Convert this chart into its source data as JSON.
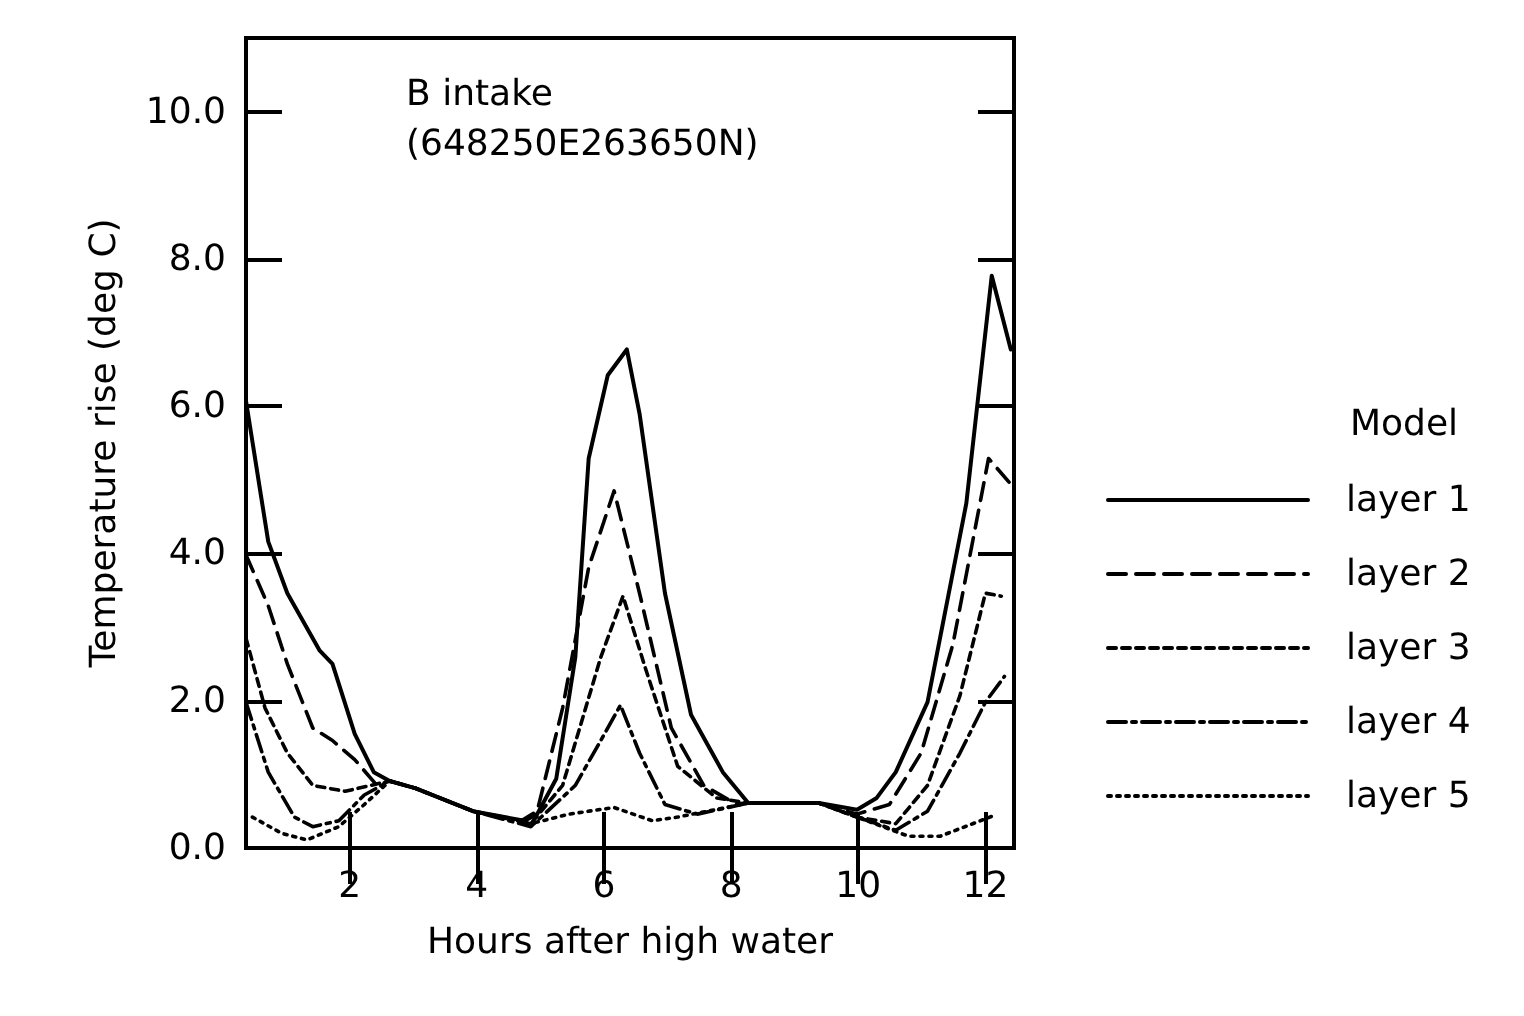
{
  "chart_data": {
    "type": "line",
    "xlabel": "Hours after high water",
    "ylabel": "Temperature rise (deg C)",
    "legend_title": "Model",
    "legend": "right",
    "grid": false,
    "marker": "none",
    "annotations": [
      "B intake",
      "(648250E263650N)"
    ],
    "xlim": [
      0.37,
      12.45
    ],
    "xticks": [
      2,
      4,
      6,
      8,
      10,
      12
    ],
    "ylim": [
      0,
      11
    ],
    "yticks": [
      {
        "value": 0,
        "label": "0.0"
      },
      {
        "value": 2,
        "label": "2.0"
      },
      {
        "value": 4,
        "label": "4.0"
      },
      {
        "value": 6,
        "label": "6.0"
      },
      {
        "value": 8,
        "label": "8.0"
      },
      {
        "value": 10,
        "label": "10.0"
      }
    ],
    "series": [
      {
        "name": "layer 1",
        "color": "#000000",
        "line_style": "solid",
        "x": [
          0.37,
          0.72,
          1.02,
          1.53,
          1.73,
          2.08,
          2.38,
          2.63,
          3.04,
          3.94,
          4.75,
          4.95,
          5.25,
          5.55,
          5.76,
          6.06,
          6.36,
          6.56,
          6.96,
          7.37,
          7.87,
          8.27,
          9.38,
          9.98,
          10.29,
          10.59,
          11.09,
          11.7,
          12.1,
          12.4
        ],
        "values": [
          6.07,
          4.16,
          3.46,
          2.68,
          2.5,
          1.55,
          1.03,
          0.91,
          0.81,
          0.5,
          0.37,
          0.46,
          0.94,
          2.59,
          5.29,
          6.42,
          6.77,
          5.9,
          3.46,
          1.81,
          1.03,
          0.61,
          0.61,
          0.52,
          0.68,
          1.03,
          1.98,
          4.68,
          7.77,
          6.77
        ]
      },
      {
        "name": "layer 2",
        "color": "#000000",
        "line_style": "dashed",
        "x": [
          0.37,
          0.72,
          1.02,
          1.42,
          1.73,
          2.08,
          2.43,
          2.63,
          3.04,
          3.94,
          4.7,
          4.95,
          5.35,
          5.76,
          6.16,
          6.56,
          7.06,
          7.57,
          8.07,
          8.27,
          9.38,
          9.98,
          10.49,
          10.99,
          11.49,
          12.05,
          12.4
        ],
        "values": [
          3.98,
          3.29,
          2.5,
          1.63,
          1.46,
          1.2,
          0.85,
          0.91,
          0.81,
          0.5,
          0.37,
          0.5,
          1.9,
          3.81,
          4.85,
          3.46,
          1.63,
          0.85,
          0.6,
          0.61,
          0.61,
          0.46,
          0.59,
          1.29,
          2.77,
          5.29,
          4.94
        ]
      },
      {
        "name": "layer 3",
        "color": "#000000",
        "line_style": "shortdash",
        "x": [
          0.37,
          0.67,
          1.02,
          1.42,
          1.93,
          2.33,
          2.63,
          3.04,
          3.94,
          4.85,
          5.35,
          5.95,
          6.3,
          6.66,
          7.16,
          7.77,
          8.27,
          9.38,
          9.98,
          10.59,
          11.09,
          11.6,
          12.0,
          12.25
        ],
        "values": [
          2.85,
          1.9,
          1.29,
          0.85,
          0.77,
          0.85,
          0.91,
          0.81,
          0.5,
          0.33,
          0.85,
          2.59,
          3.42,
          2.42,
          1.11,
          0.68,
          0.61,
          0.61,
          0.42,
          0.33,
          0.85,
          2.07,
          3.46,
          3.42
        ]
      },
      {
        "name": "layer 4",
        "color": "#000000",
        "line_style": "dashdot",
        "x": [
          0.37,
          0.72,
          1.13,
          1.42,
          1.83,
          2.23,
          2.63,
          3.04,
          3.94,
          4.85,
          5.55,
          5.95,
          6.26,
          6.56,
          6.96,
          7.47,
          8.27,
          9.38,
          9.98,
          10.59,
          11.09,
          11.6,
          12.0,
          12.3
        ],
        "values": [
          1.98,
          1.03,
          0.42,
          0.29,
          0.37,
          0.72,
          0.91,
          0.81,
          0.5,
          0.29,
          0.85,
          1.46,
          1.94,
          1.29,
          0.59,
          0.46,
          0.61,
          0.61,
          0.42,
          0.24,
          0.5,
          1.29,
          1.98,
          2.33
        ]
      },
      {
        "name": "layer 5",
        "color": "#000000",
        "line_style": "dotted",
        "x": [
          0.47,
          0.93,
          1.33,
          1.83,
          2.23,
          2.63,
          3.04,
          3.94,
          4.85,
          5.45,
          6.16,
          6.76,
          7.16,
          8.27,
          9.38,
          9.98,
          10.79,
          11.29,
          11.8,
          12.1
        ],
        "values": [
          0.42,
          0.2,
          0.11,
          0.29,
          0.59,
          0.91,
          0.81,
          0.5,
          0.33,
          0.46,
          0.55,
          0.37,
          0.42,
          0.61,
          0.61,
          0.42,
          0.16,
          0.16,
          0.33,
          0.43
        ]
      }
    ]
  }
}
